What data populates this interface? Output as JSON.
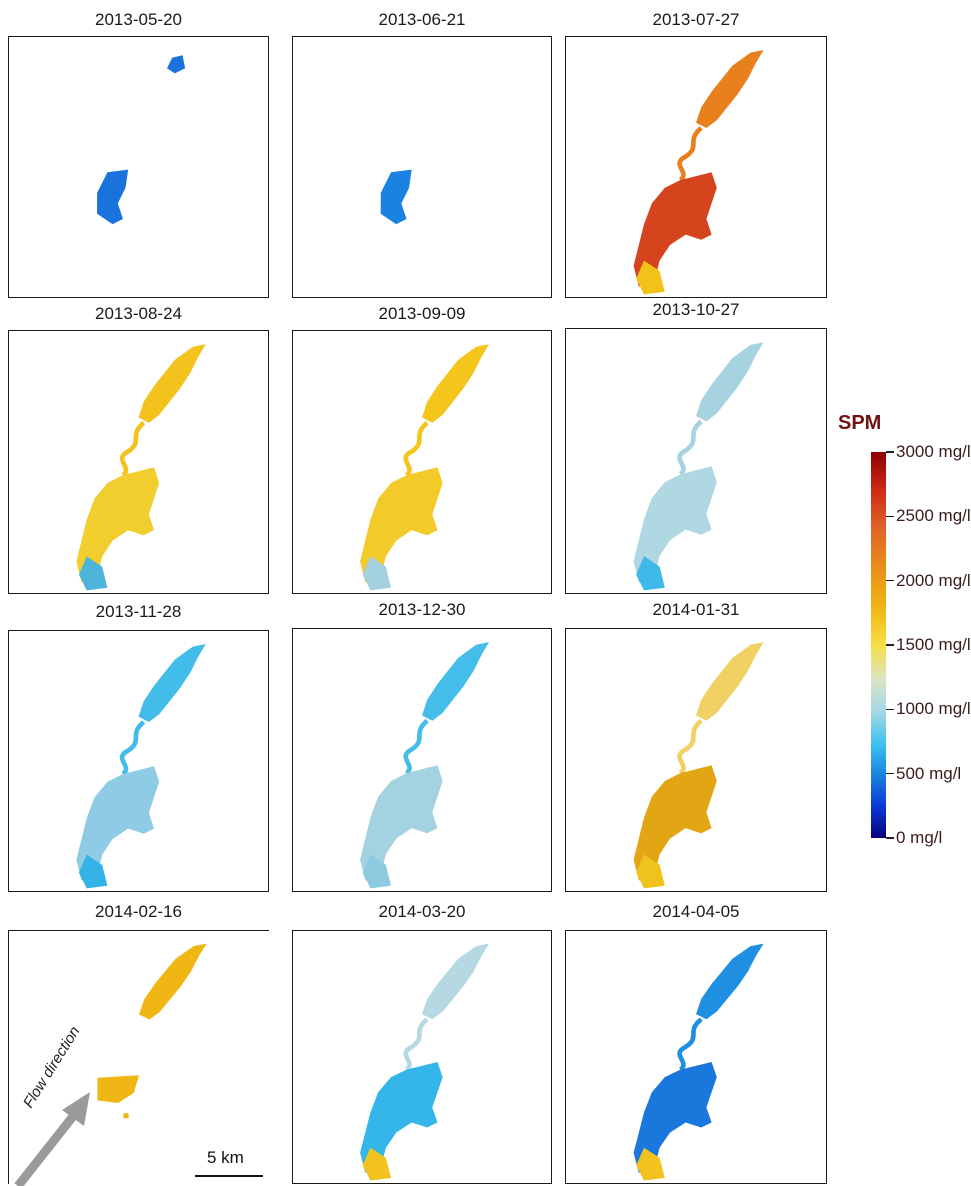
{
  "panels": [
    {
      "date": "2013-05-20",
      "color": "#1a73dd",
      "extent": "small"
    },
    {
      "date": "2013-06-21",
      "color": "#1a82e0",
      "extent": "small"
    },
    {
      "date": "2013-07-27",
      "color": "#e8801e",
      "color2": "#d6441e",
      "color3": "#f2c218",
      "extent": "full"
    },
    {
      "date": "2013-08-24",
      "color": "#f4c21c",
      "color2": "#f1ce2e",
      "color3": "#4fb4dc",
      "extent": "full"
    },
    {
      "date": "2013-09-09",
      "color": "#f4c61c",
      "color2": "#f2ca2a",
      "color3": "#a3d0de",
      "extent": "full"
    },
    {
      "date": "2013-10-27",
      "color": "#a7d3e0",
      "color2": "#b0d8e2",
      "color3": "#3fb9e8",
      "extent": "full"
    },
    {
      "date": "2013-11-28",
      "color": "#42bde9",
      "color2": "#8fcbe4",
      "color3": "#35b3e6",
      "extent": "full"
    },
    {
      "date": "2013-12-30",
      "color": "#44bde8",
      "color2": "#a5d2e0",
      "color3": "#8fcbe0",
      "extent": "full"
    },
    {
      "date": "2014-01-31",
      "color": "#f1d064",
      "color2": "#e2a614",
      "color3": "#f0c21c",
      "extent": "full"
    },
    {
      "date": "2014-02-16",
      "color": "#f0b614",
      "color2": "#f0b614",
      "color3": "#f0b614",
      "extent": "partial"
    },
    {
      "date": "2014-03-20",
      "color": "#b6d8e2",
      "color2": "#35b6ea",
      "color3": "#f2c21e",
      "extent": "full"
    },
    {
      "date": "2014-04-05",
      "color": "#1f8fe2",
      "color2": "#1a78dc",
      "color3": "#f2c21e",
      "extent": "full"
    }
  ],
  "legend": {
    "title": "SPM",
    "ticks": [
      {
        "label": "3000 mg/l",
        "value": 3000
      },
      {
        "label": "2500 mg/l",
        "value": 2500
      },
      {
        "label": "2000 mg/l",
        "value": 2000
      },
      {
        "label": "1500 mg/l",
        "value": 1500
      },
      {
        "label": "1000 mg/l",
        "value": 1000
      },
      {
        "label": "500 mg/l",
        "value": 500
      },
      {
        "label": "0 mg/l",
        "value": 0
      }
    ]
  },
  "scale_bar_label": "5 km",
  "flow_label": "Flow direction",
  "colors": {
    "arrow": "#9a9a9a",
    "frame": "#1a1a1a",
    "legend_title": "#6e1414"
  }
}
